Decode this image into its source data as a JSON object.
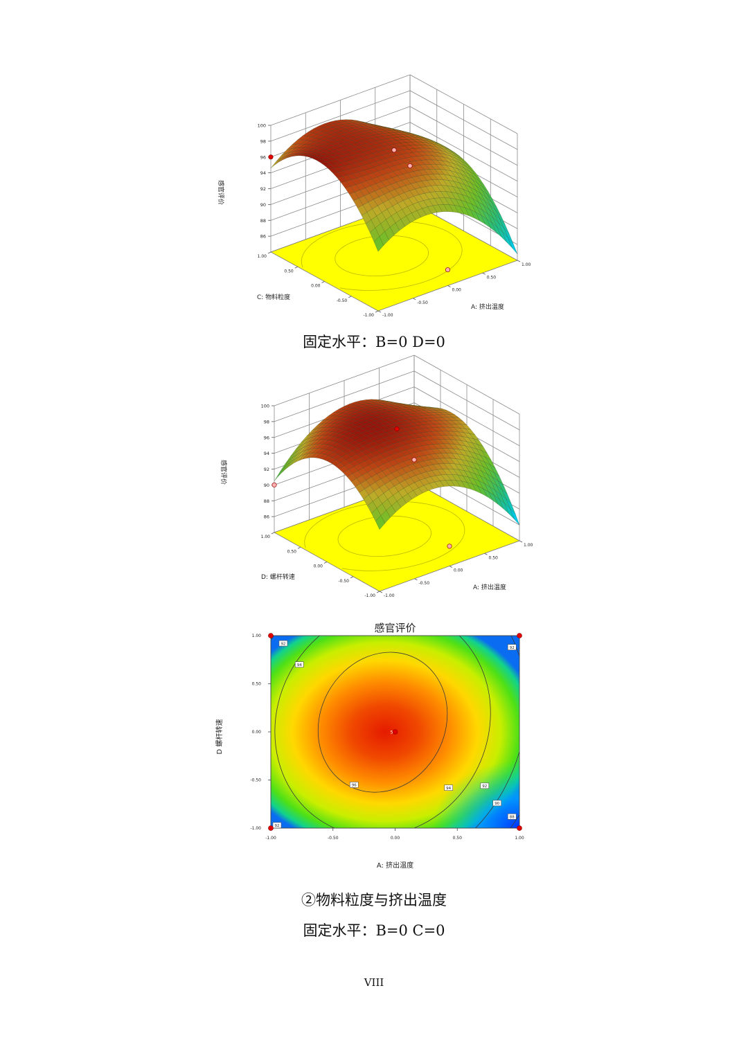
{
  "chart_data": [
    {
      "type": "surface3d",
      "zlabel": "感官评价",
      "xlabel": "A: 挤出温度",
      "ylabel": "C: 物料粒度",
      "x_ticks": [
        "-1.00",
        "-0.50",
        "0.00",
        "0.50",
        "1.00"
      ],
      "y_ticks": [
        "-1.00",
        "-0.50",
        "0.00",
        "0.50",
        "1.00"
      ],
      "z_ticks": [
        "86",
        "88",
        "90",
        "92",
        "94",
        "96",
        "98",
        "100"
      ],
      "zlim": [
        84,
        100
      ],
      "grid": true,
      "surface_peak": {
        "A": -0.1,
        "C": 0.1,
        "value": 97.2
      },
      "corner_values": {
        "A-1_C-1": 91.5,
        "A1_C-1": 84.8,
        "A-1_C1": 94.6,
        "A1_C1": 90.0
      },
      "design_points": [
        {
          "A": 0,
          "C": 0,
          "value": 97.4
        },
        {
          "A": -1,
          "C": 1,
          "value": 96.0
        },
        {
          "A": 1,
          "C": 1,
          "value": 88.5
        },
        {
          "A": 0,
          "C": -1,
          "value": 86.0
        }
      ]
    },
    {
      "type": "surface3d",
      "zlabel": "感官评价",
      "xlabel": "A: 挤出温度",
      "ylabel": "D: 螺杆转速",
      "x_ticks": [
        "-1.00",
        "-0.50",
        "0.00",
        "0.50",
        "1.00"
      ],
      "y_ticks": [
        "-1.00",
        "-0.50",
        "0.00",
        "0.50",
        "1.00"
      ],
      "z_ticks": [
        "86",
        "88",
        "90",
        "92",
        "94",
        "96",
        "98",
        "100"
      ],
      "zlim": [
        84,
        100
      ],
      "grid": true,
      "surface_peak": {
        "A": -0.1,
        "D": 0.1,
        "value": 97.0
      },
      "corner_values": {
        "A-1_D-1": 91.8,
        "A1_D-1": 86.0,
        "A-1_D1": 90.5,
        "A1_D1": 92.6
      },
      "design_points": [
        {
          "A": 0,
          "D": 0,
          "value": 97.6
        },
        {
          "A": -1,
          "D": 1,
          "value": 90.0
        },
        {
          "A": 1,
          "D": 1,
          "value": 86.8
        },
        {
          "A": 0,
          "D": -1,
          "value": 86.5
        }
      ]
    },
    {
      "type": "contour",
      "title": "感官评价",
      "xlabel": "A: 挤出温度",
      "ylabel": "D 螺杆转速",
      "x_ticks": [
        "-1.00",
        "-0.50",
        "0.00",
        "0.50",
        "1.00"
      ],
      "y_ticks": [
        "-1.00",
        "-0.50",
        "0.00",
        "0.50",
        "1.00"
      ],
      "xlim": [
        -1,
        1
      ],
      "ylim": [
        -1,
        1
      ],
      "center": {
        "A": -0.1,
        "D": 0.1,
        "value": 97.0
      },
      "contour_labels": [
        {
          "A": -0.9,
          "D": 0.92,
          "label": "92"
        },
        {
          "A": -0.77,
          "D": 0.7,
          "label": "94"
        },
        {
          "A": 0.94,
          "D": 0.88,
          "label": "92"
        },
        {
          "A": -0.33,
          "D": -0.55,
          "label": "96"
        },
        {
          "A": 0.43,
          "D": -0.58,
          "label": "94"
        },
        {
          "A": 0.72,
          "D": -0.56,
          "label": "92"
        },
        {
          "A": 0.82,
          "D": -0.74,
          "label": "90"
        },
        {
          "A": 0.94,
          "D": -0.88,
          "label": "88"
        },
        {
          "A": -0.95,
          "D": -0.97,
          "label": "92"
        }
      ],
      "design_points": [
        {
          "A": -1,
          "D": 1
        },
        {
          "A": 1,
          "D": 1
        },
        {
          "A": -1,
          "D": -1
        },
        {
          "A": 1,
          "D": -1
        },
        {
          "A": 0,
          "D": 0
        }
      ],
      "center_label": "5"
    }
  ],
  "captions": {
    "fixed_1": "固定水平：B=0 D=0",
    "subtitle_2": "②物料粒度与挤出温度",
    "fixed_2": "固定水平：B=0 C=0"
  },
  "page_number": "VIII",
  "colors": {
    "floor": "#ffff00",
    "high": "#d92b00",
    "mid": "#ffe600",
    "low": "#0050ff",
    "point": "#e00000"
  }
}
